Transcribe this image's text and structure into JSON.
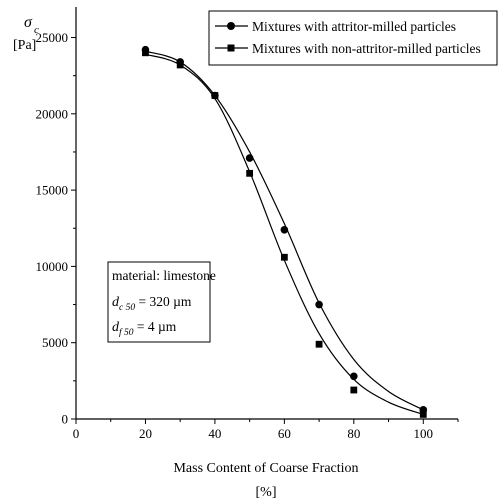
{
  "chart_data": {
    "type": "scatter",
    "title": "",
    "xlabel": "Mass Content of Coarse Fraction",
    "xunit": "[%]",
    "ylabel_symbol": "σ",
    "ylabel_subscript": "c",
    "yunit": "[Pa]",
    "xlim": [
      0,
      110
    ],
    "ylim": [
      0,
      27000
    ],
    "xticks": [
      0,
      20,
      40,
      60,
      80,
      100
    ],
    "yticks": [
      0,
      5000,
      10000,
      15000,
      20000,
      25000
    ],
    "grid": false,
    "legend_position": "top-right",
    "series": [
      {
        "name": "Mixtures with attritor-milled particles",
        "marker": "circle",
        "x": [
          20,
          30,
          40,
          50,
          60,
          70,
          80,
          100
        ],
        "y": [
          24200,
          23400,
          21200,
          17100,
          12400,
          7500,
          2800,
          600
        ],
        "fit_curve": [
          [
            20,
            24100
          ],
          [
            30,
            23400
          ],
          [
            40,
            21200
          ],
          [
            50,
            17500
          ],
          [
            60,
            12800
          ],
          [
            70,
            7600
          ],
          [
            80,
            3900
          ],
          [
            90,
            1800
          ],
          [
            100,
            600
          ]
        ]
      },
      {
        "name": "Mixtures with non-attritor-milled particles",
        "marker": "square",
        "x": [
          20,
          30,
          40,
          50,
          60,
          70,
          80,
          100
        ],
        "y": [
          24000,
          23200,
          21200,
          16100,
          10600,
          4900,
          1900,
          300
        ],
        "fit_curve": [
          [
            20,
            23900
          ],
          [
            30,
            23200
          ],
          [
            40,
            21000
          ],
          [
            50,
            16200
          ],
          [
            60,
            10400
          ],
          [
            70,
            5600
          ],
          [
            80,
            2600
          ],
          [
            90,
            1100
          ],
          [
            100,
            300
          ]
        ]
      }
    ],
    "annotation": {
      "line1": "material: limestone",
      "line2_symbol": "d",
      "line2_subscript": "c 50",
      "line2_value": " = 320 µm",
      "line3_symbol": "d",
      "line3_subscript": "f 50",
      "line3_value": " = 4 µm"
    }
  }
}
